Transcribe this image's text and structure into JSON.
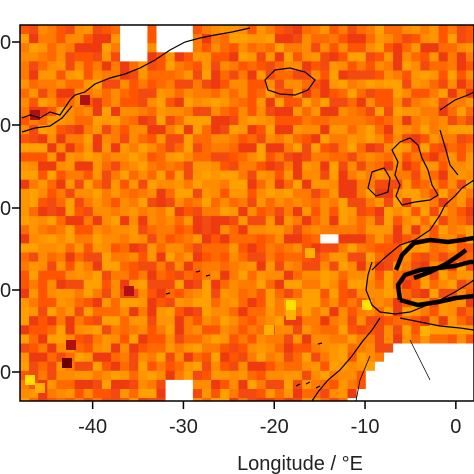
{
  "chart_data": {
    "type": "heatmap",
    "title": "",
    "xlabel": "Longitude / °E",
    "ylabel": "",
    "x_ticks": [
      -40,
      -30,
      -20,
      -10,
      0
    ],
    "x_tick_labels": [
      "-40",
      "-30",
      "-20",
      "-10",
      "0"
    ],
    "xlim": [
      -48,
      2
    ],
    "y_ticks_visible": 5,
    "colors": {
      "low": "#ff8c00",
      "mid": "#ff6a00",
      "high": "#ee3a10",
      "very_high": "#b01010",
      "extreme": "#6a0000",
      "warm": "#ffb000",
      "hot": "#ffe000",
      "missing": "#ffffff",
      "coast": "#000000",
      "contour": "#000000"
    },
    "missing_cells_note": "white cells indicate no data (over land / masked)",
    "notable_cells": [
      {
        "lon": -43,
        "lat_row": "south",
        "value": "extreme"
      },
      {
        "lon": -36,
        "lat_row": "mid-south",
        "value": "very_high"
      },
      {
        "lon": -46,
        "lat_row": "south",
        "value": "hot"
      },
      {
        "lon": -16,
        "lat_row": "mid-south",
        "value": "hot"
      },
      {
        "lon": -8,
        "lat_row": "mid-south",
        "value": "hot"
      }
    ]
  }
}
